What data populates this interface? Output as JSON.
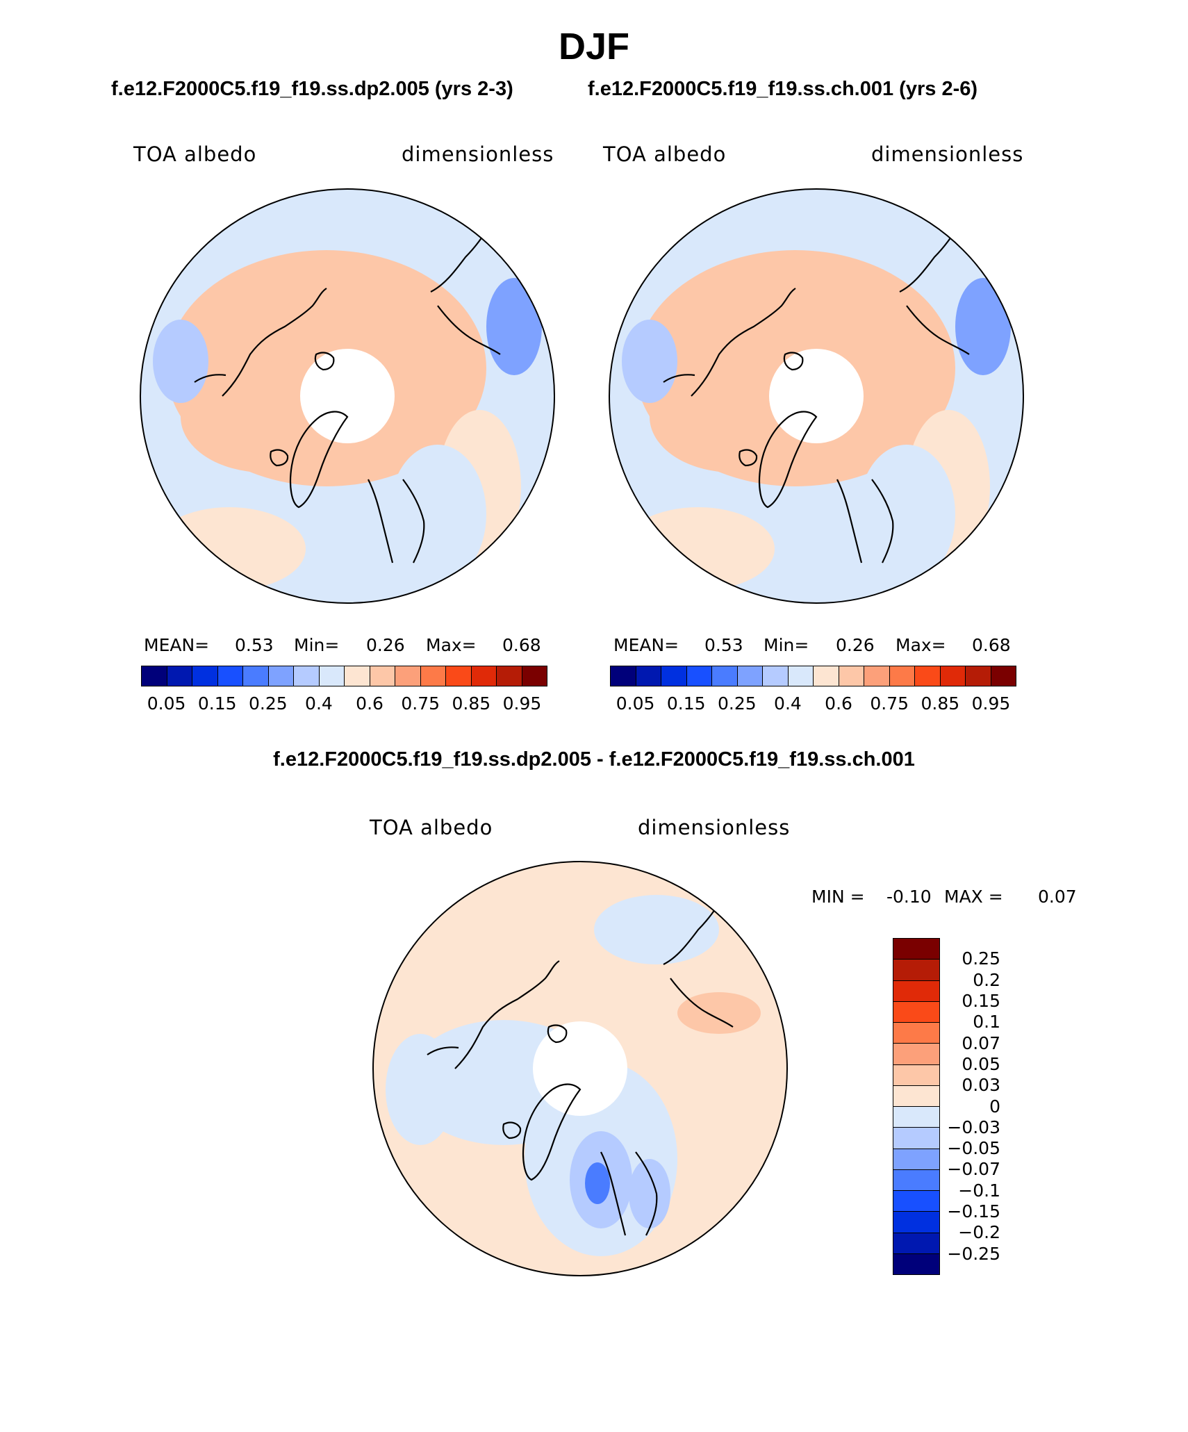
{
  "title": "DJF",
  "case_left": "f.e12.F2000C5.f19_f19.ss.dp2.005 (yrs 2-3)",
  "case_right": "f.e12.F2000C5.f19_f19.ss.ch.001 (yrs 2-6)",
  "diff_title": "f.e12.F2000C5.f19_f19.ss.dp2.005 - f.e12.F2000C5.f19_f19.ss.ch.001",
  "panels": [
    {
      "variable": "TOA albedo",
      "units": "dimensionless",
      "stats": {
        "mean_label": "MEAN=",
        "mean": "0.53",
        "min_label": "Min=",
        "min": "0.26",
        "max_label": "Max=",
        "max": "0.68"
      }
    },
    {
      "variable": "TOA albedo",
      "units": "dimensionless",
      "stats": {
        "mean_label": "MEAN=",
        "mean": "0.53",
        "min_label": "Min=",
        "min": "0.26",
        "max_label": "Max=",
        "max": "0.68"
      }
    },
    {
      "variable": "TOA albedo",
      "units": "dimensionless",
      "stats": {
        "min_label": "MIN =",
        "min": "-0.10",
        "max_label": "MAX =",
        "max": "0.07"
      }
    }
  ],
  "colorbar_abs": {
    "colors": [
      "#00007a",
      "#0018b0",
      "#0030e0",
      "#1850ff",
      "#4a7cff",
      "#7ea2ff",
      "#b5cbff",
      "#d9e8fb",
      "#fde5d2",
      "#fdc7a8",
      "#fca07a",
      "#fd7a48",
      "#fa4a18",
      "#e02a08",
      "#b51c06",
      "#7a0000"
    ],
    "labels": [
      "0.05",
      "0.15",
      "0.25",
      "0.4",
      "0.6",
      "0.75",
      "0.85",
      "0.95"
    ]
  },
  "colorbar_diff": {
    "colors": [
      "#7a0000",
      "#b51c06",
      "#e02a08",
      "#fa4a18",
      "#fd7a48",
      "#fca07a",
      "#fdc7a8",
      "#fde5d2",
      "#d9e8fb",
      "#b5cbff",
      "#7ea2ff",
      "#4a7cff",
      "#1850ff",
      "#0030e0",
      "#0018b0",
      "#00007a"
    ],
    "labels": [
      "0.25",
      "0.2",
      "0.15",
      "0.1",
      "0.07",
      "0.05",
      "0.03",
      "0",
      "−0.03",
      "−0.05",
      "−0.07",
      "−0.1",
      "−0.15",
      "−0.2",
      "−0.25"
    ]
  },
  "map_colors": {
    "light_blue": "#d9e8fb",
    "mid_blue": "#b5cbff",
    "blue": "#7ea2ff",
    "dark_blue": "#4a7cff",
    "peach": "#fde5d2",
    "salmon": "#fdc7a8"
  }
}
